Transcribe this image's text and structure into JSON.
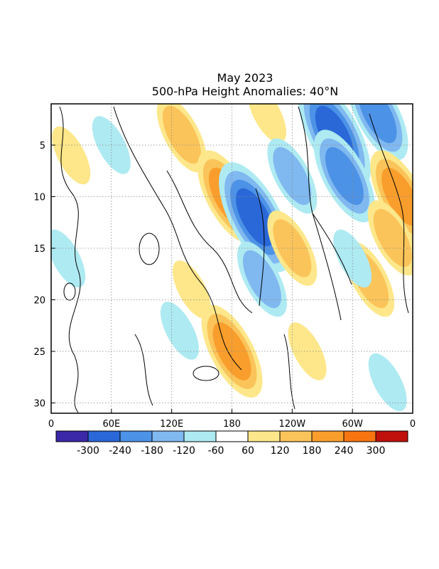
{
  "chart_data": {
    "type": "heatmap",
    "title": "May 2023",
    "subtitle": "500-hPa Height Anomalies: 40°N",
    "xlabel": "",
    "ylabel": "",
    "x_ticks": [
      "0",
      "60E",
      "120E",
      "180",
      "120W",
      "60W",
      "0"
    ],
    "x_range_deg": [
      0,
      360
    ],
    "y_ticks": [
      5,
      10,
      15,
      20,
      25,
      30
    ],
    "y_range": [
      1,
      31
    ],
    "y_direction": "downward",
    "grid": "dotted",
    "colorbar": {
      "levels": [
        -300,
        -240,
        -180,
        -120,
        -60,
        60,
        120,
        180,
        240,
        300
      ],
      "labels": [
        "-300",
        "-240",
        "-180",
        "-120",
        "-60",
        "60",
        "120",
        "180",
        "240",
        "300"
      ],
      "colors": [
        "#3a28a8",
        "#2a68d8",
        "#4c92e6",
        "#80b8f0",
        "#aeeaf2",
        "#ffffff",
        "#fde78a",
        "#fbc45a",
        "#f99e2c",
        "#f77510",
        "#c0100c"
      ]
    },
    "anomalies": [
      {
        "lon": 130,
        "day": 4,
        "value": 150
      },
      {
        "lon": 215,
        "day": 2,
        "value": 80
      },
      {
        "lon": 240,
        "day": 8,
        "value": -150
      },
      {
        "lon": 282,
        "day": 4,
        "value": -270
      },
      {
        "lon": 292,
        "day": 8,
        "value": -210
      },
      {
        "lon": 325,
        "day": 2,
        "value": -230
      },
      {
        "lon": 348,
        "day": 10,
        "value": 200
      },
      {
        "lon": 176,
        "day": 10,
        "value": 230
      },
      {
        "lon": 203,
        "day": 12,
        "value": -260
      },
      {
        "lon": 210,
        "day": 18,
        "value": -140
      },
      {
        "lon": 240,
        "day": 15,
        "value": 150
      },
      {
        "lon": 317,
        "day": 18,
        "value": 170
      },
      {
        "lon": 340,
        "day": 14,
        "value": 170
      },
      {
        "lon": 180,
        "day": 25,
        "value": 200
      },
      {
        "lon": 255,
        "day": 25,
        "value": 110
      },
      {
        "lon": 140,
        "day": 19,
        "value": 110
      },
      {
        "lon": 20,
        "day": 6,
        "value": 100
      },
      {
        "lon": 60,
        "day": 5,
        "value": -80
      },
      {
        "lon": 15,
        "day": 16,
        "value": -90
      },
      {
        "lon": 128,
        "day": 23,
        "value": -90
      },
      {
        "lon": 335,
        "day": 28,
        "value": -110
      },
      {
        "lon": 300,
        "day": 16,
        "value": -80
      }
    ]
  }
}
